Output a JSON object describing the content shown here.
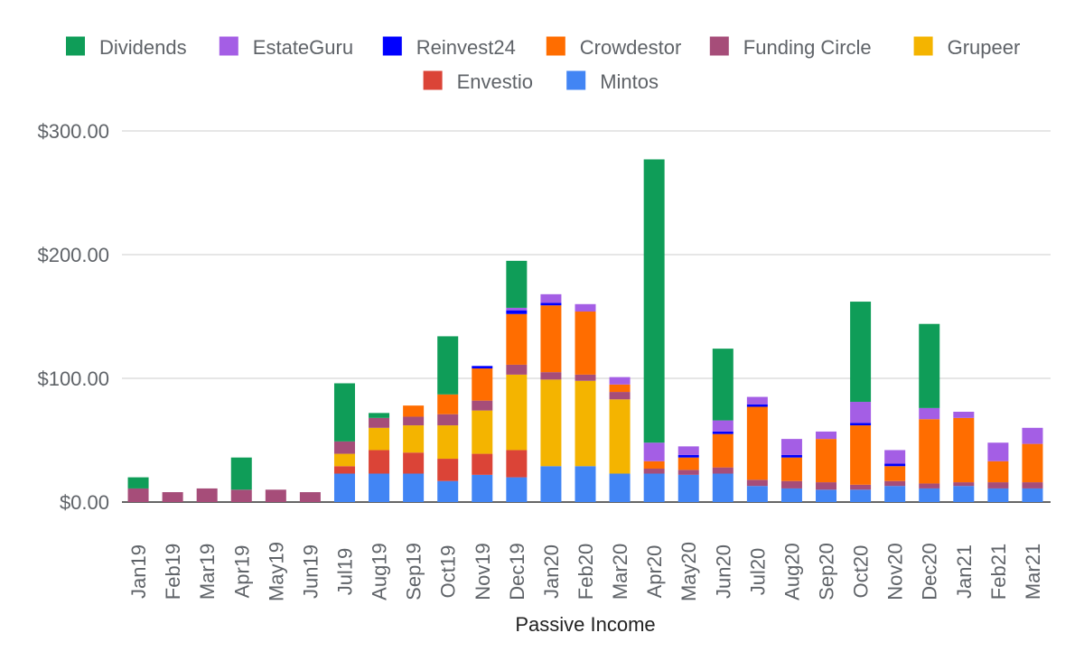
{
  "chart_data": {
    "type": "bar",
    "stacked": true,
    "title": "",
    "xlabel": "Passive Income",
    "ylabel": "",
    "ylim": [
      0,
      300
    ],
    "yticks": [
      0,
      100,
      200,
      300
    ],
    "ytick_labels": [
      "$0.00",
      "$100.00",
      "$200.00",
      "$300.00"
    ],
    "grid": true,
    "legend_position": "top",
    "categories": [
      "Jan19",
      "Feb19",
      "Mar19",
      "Apr19",
      "May19",
      "Jun19",
      "Jul19",
      "Aug19",
      "Sep19",
      "Oct19",
      "Nov19",
      "Dec19",
      "Jan20",
      "Feb20",
      "Mar20",
      "Apr20",
      "May20",
      "Jun20",
      "Jul20",
      "Aug20",
      "Sep20",
      "Oct20",
      "Nov20",
      "Dec20",
      "Jan21",
      "Feb21",
      "Mar21"
    ],
    "series": [
      {
        "name": "Mintos",
        "color": "#4285f4",
        "values": [
          0,
          0,
          0,
          0,
          0,
          0,
          23,
          23,
          23,
          17,
          22,
          20,
          29,
          29,
          23,
          23,
          22,
          23,
          13,
          11,
          10,
          10,
          13,
          11,
          13,
          11,
          11
        ]
      },
      {
        "name": "Envestio",
        "color": "#db4437",
        "values": [
          0,
          0,
          0,
          0,
          0,
          0,
          6,
          19,
          17,
          18,
          17,
          22,
          0,
          0,
          0,
          0,
          0,
          0,
          0,
          0,
          0,
          0,
          0,
          0,
          0,
          0,
          0
        ]
      },
      {
        "name": "Grupeer",
        "color": "#f4b400",
        "values": [
          0,
          0,
          0,
          0,
          0,
          0,
          10,
          18,
          22,
          27,
          35,
          61,
          70,
          69,
          60,
          0,
          0,
          0,
          0,
          0,
          0,
          0,
          0,
          0,
          0,
          0,
          0
        ]
      },
      {
        "name": "Funding Circle",
        "color": "#a64d79",
        "values": [
          11,
          8,
          11,
          10,
          10,
          8,
          10,
          8,
          7,
          9,
          8,
          8,
          6,
          5,
          6,
          4,
          4,
          5,
          5,
          6,
          6,
          4,
          4,
          4,
          3,
          5,
          5
        ]
      },
      {
        "name": "Crowdestor",
        "color": "#ff6d00",
        "values": [
          0,
          0,
          0,
          0,
          0,
          0,
          0,
          0,
          9,
          16,
          26,
          41,
          54,
          51,
          6,
          6,
          10,
          27,
          59,
          19,
          35,
          48,
          12,
          52,
          52,
          17,
          31
        ]
      },
      {
        "name": "Reinvest24",
        "color": "#0000ff",
        "values": [
          0,
          0,
          0,
          0,
          0,
          0,
          0,
          0,
          0,
          0,
          2,
          3,
          2,
          0,
          0,
          0,
          2,
          2,
          2,
          2,
          0,
          2,
          2,
          0,
          0,
          0,
          0
        ]
      },
      {
        "name": "EstateGuru",
        "color": "#a45ee5",
        "values": [
          0,
          0,
          0,
          0,
          0,
          0,
          0,
          0,
          0,
          0,
          0,
          2,
          7,
          6,
          6,
          15,
          7,
          9,
          6,
          13,
          6,
          17,
          11,
          9,
          5,
          15,
          13
        ]
      },
      {
        "name": "Dividends",
        "color": "#0f9d58",
        "values": [
          9,
          0,
          0,
          26,
          0,
          0,
          47,
          4,
          0,
          47,
          0,
          38,
          0,
          0,
          0,
          229,
          0,
          58,
          0,
          0,
          0,
          81,
          0,
          68,
          0,
          0,
          0
        ]
      }
    ],
    "legend_order": [
      "Dividends",
      "EstateGuru",
      "Reinvest24",
      "Crowdestor",
      "Funding Circle",
      "Grupeer",
      "Envestio",
      "Mintos"
    ]
  }
}
